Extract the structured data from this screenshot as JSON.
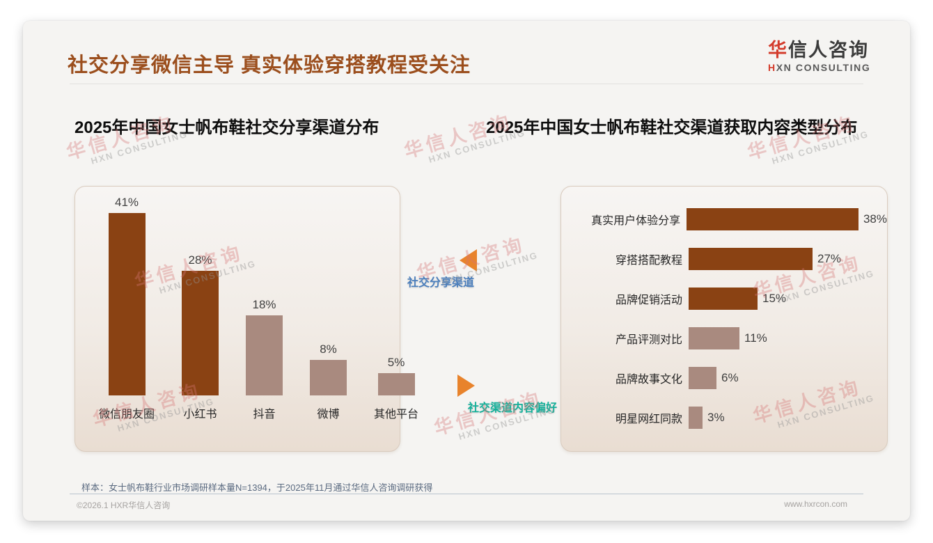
{
  "page": {
    "title": "社交分享微信主导 真实体验穿搭教程受关注",
    "logo": {
      "zh_red": "华",
      "zh_rest": "信人咨询",
      "en_red": "H",
      "en_rest": "XN CONSULTING"
    },
    "watermark": {
      "zh": "华信人咨询",
      "en": "HXN CONSULTING"
    },
    "note": "样本：女士帆布鞋行业市场调研样本量N=1394，于2025年11月通过华信人咨询调研获得",
    "footer": {
      "left": "©2026.1 HXR华信人咨询",
      "right": "www.hxrcon.com"
    },
    "colors": {
      "title_brown": "#9B4E1D",
      "bar_dark_brown": "#8A4213",
      "bar_light_mauve": "#A98A7F",
      "arrow_orange": "#E8832C",
      "connector_blue": "#4A7EBC",
      "connector_teal": "#14B09A",
      "logo_red": "#D43C2C"
    }
  },
  "connectors": [
    {
      "label": "社交分享渠道",
      "direction": "left",
      "color": "#4A7EBC"
    },
    {
      "label": "社交渠道内容偏好",
      "direction": "right",
      "color": "#14B09A"
    }
  ],
  "chart_data": [
    {
      "type": "bar",
      "orientation": "vertical",
      "title": "2025年中国女士帆布鞋社交分享渠道分布",
      "categories": [
        "微信朋友圈",
        "小红书",
        "抖音",
        "微博",
        "其他平台"
      ],
      "values": [
        41,
        28,
        18,
        8,
        5
      ],
      "unit": "%",
      "colors": [
        "#8A4213",
        "#8A4213",
        "#A98A7F",
        "#A98A7F",
        "#A98A7F"
      ],
      "ylim": [
        0,
        45
      ],
      "grid": false,
      "value_labels": true,
      "legend": "none"
    },
    {
      "type": "bar",
      "orientation": "horizontal",
      "title": "2025年中国女士帆布鞋社交渠道获取内容类型分布",
      "categories": [
        "真实用户体验分享",
        "穿搭搭配教程",
        "品牌促销活动",
        "产品评测对比",
        "品牌故事文化",
        "明星网红同款"
      ],
      "values": [
        38,
        27,
        15,
        11,
        6,
        3
      ],
      "unit": "%",
      "colors": [
        "#8A4213",
        "#8A4213",
        "#8A4213",
        "#A98A7F",
        "#A98A7F",
        "#A98A7F"
      ],
      "xlim": [
        0,
        40
      ],
      "grid": false,
      "value_labels": true,
      "legend": "none"
    }
  ]
}
